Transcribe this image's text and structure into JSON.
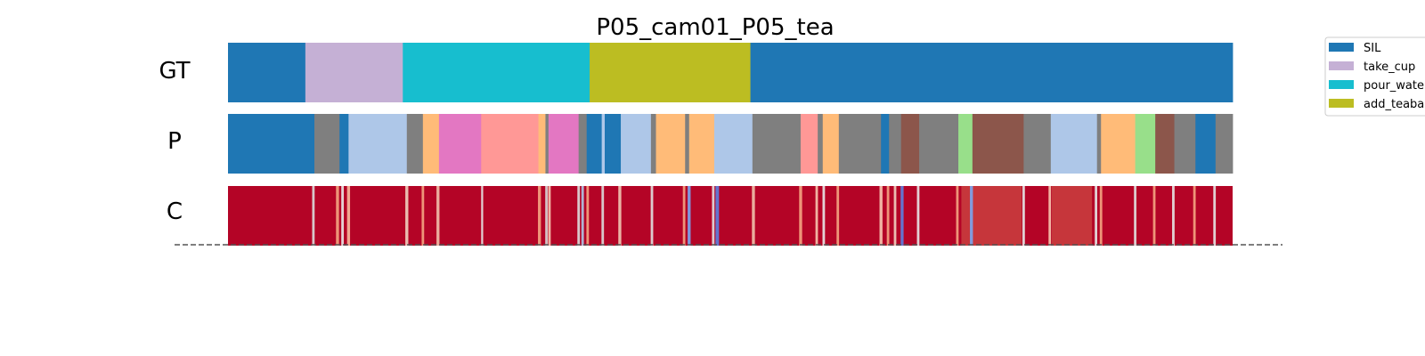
{
  "chart_data": {
    "type": "segmentation-timeline",
    "title": "P05_cam01_P05_tea",
    "x_range": [
      0,
      100
    ],
    "rows": [
      {
        "label": "GT",
        "segments": [
          {
            "start": 0.0,
            "end": 7.7,
            "color": "#1f77b4"
          },
          {
            "start": 7.7,
            "end": 17.4,
            "color": "#c5b0d5"
          },
          {
            "start": 17.4,
            "end": 36.0,
            "color": "#17becf"
          },
          {
            "start": 36.0,
            "end": 52.0,
            "color": "#bcbd22"
          },
          {
            "start": 52.0,
            "end": 100.0,
            "color": "#1f77b4"
          }
        ]
      },
      {
        "label": "P",
        "segments": [
          {
            "start": 0.0,
            "end": 8.6,
            "color": "#1f77b4"
          },
          {
            "start": 8.6,
            "end": 11.1,
            "color": "#7f7f7f"
          },
          {
            "start": 11.1,
            "end": 12.0,
            "color": "#1f77b4"
          },
          {
            "start": 12.0,
            "end": 17.8,
            "color": "#aec7e8"
          },
          {
            "start": 17.8,
            "end": 19.4,
            "color": "#7f7f7f"
          },
          {
            "start": 19.4,
            "end": 21.0,
            "color": "#ffbb78"
          },
          {
            "start": 21.0,
            "end": 25.2,
            "color": "#e377c2"
          },
          {
            "start": 25.2,
            "end": 30.9,
            "color": "#ff9896"
          },
          {
            "start": 30.9,
            "end": 31.6,
            "color": "#ffbb78"
          },
          {
            "start": 31.6,
            "end": 31.9,
            "color": "#7f7f7f"
          },
          {
            "start": 31.9,
            "end": 34.9,
            "color": "#e377c2"
          },
          {
            "start": 34.9,
            "end": 35.7,
            "color": "#7f7f7f"
          },
          {
            "start": 35.7,
            "end": 37.2,
            "color": "#1f77b4"
          },
          {
            "start": 37.2,
            "end": 37.5,
            "color": "#aec7e8"
          },
          {
            "start": 37.5,
            "end": 39.1,
            "color": "#1f77b4"
          },
          {
            "start": 39.1,
            "end": 42.1,
            "color": "#aec7e8"
          },
          {
            "start": 42.1,
            "end": 42.6,
            "color": "#7f7f7f"
          },
          {
            "start": 42.6,
            "end": 45.5,
            "color": "#ffbb78"
          },
          {
            "start": 45.5,
            "end": 45.9,
            "color": "#7f7f7f"
          },
          {
            "start": 45.9,
            "end": 48.4,
            "color": "#ffbb78"
          },
          {
            "start": 48.4,
            "end": 52.2,
            "color": "#aec7e8"
          },
          {
            "start": 52.2,
            "end": 57.0,
            "color": "#7f7f7f"
          },
          {
            "start": 57.0,
            "end": 58.7,
            "color": "#ff9896"
          },
          {
            "start": 58.7,
            "end": 59.2,
            "color": "#7f7f7f"
          },
          {
            "start": 59.2,
            "end": 60.8,
            "color": "#ffbb78"
          },
          {
            "start": 60.8,
            "end": 65.0,
            "color": "#7f7f7f"
          },
          {
            "start": 65.0,
            "end": 65.8,
            "color": "#1f77b4"
          },
          {
            "start": 65.8,
            "end": 67.0,
            "color": "#7f7f7f"
          },
          {
            "start": 67.0,
            "end": 68.8,
            "color": "#8c564b"
          },
          {
            "start": 68.8,
            "end": 72.7,
            "color": "#7f7f7f"
          },
          {
            "start": 72.7,
            "end": 74.1,
            "color": "#98df8a"
          },
          {
            "start": 74.1,
            "end": 79.2,
            "color": "#8c564b"
          },
          {
            "start": 79.2,
            "end": 81.9,
            "color": "#7f7f7f"
          },
          {
            "start": 81.9,
            "end": 86.5,
            "color": "#aec7e8"
          },
          {
            "start": 86.5,
            "end": 86.9,
            "color": "#7f7f7f"
          },
          {
            "start": 86.9,
            "end": 90.3,
            "color": "#ffbb78"
          },
          {
            "start": 90.3,
            "end": 92.3,
            "color": "#98df8a"
          },
          {
            "start": 92.3,
            "end": 94.2,
            "color": "#8c564b"
          },
          {
            "start": 94.2,
            "end": 96.3,
            "color": "#7f7f7f"
          },
          {
            "start": 96.3,
            "end": 98.3,
            "color": "#1f77b4"
          },
          {
            "start": 98.3,
            "end": 100.0,
            "color": "#7f7f7f"
          }
        ]
      },
      {
        "label": "C",
        "base_color": "#b40426",
        "stripes": [
          {
            "pos": 8.5,
            "color": "#dcdcdc",
            "width": 0.25
          },
          {
            "pos": 10.9,
            "color": "#f4a582",
            "width": 0.3
          },
          {
            "pos": 11.4,
            "color": "#e8e8e8",
            "width": 0.25
          },
          {
            "pos": 12.0,
            "color": "#f7b89c",
            "width": 0.3
          },
          {
            "pos": 17.8,
            "color": "#f0d0c0",
            "width": 0.3
          },
          {
            "pos": 19.4,
            "color": "#f4a582",
            "width": 0.25
          },
          {
            "pos": 20.9,
            "color": "#f0c0aa",
            "width": 0.3
          },
          {
            "pos": 25.3,
            "color": "#e6e6e6",
            "width": 0.2
          },
          {
            "pos": 31.0,
            "color": "#f4a582",
            "width": 0.3
          },
          {
            "pos": 31.7,
            "color": "#d6d6d6",
            "width": 0.25
          },
          {
            "pos": 32.0,
            "color": "#f7c6b0",
            "width": 0.25
          },
          {
            "pos": 34.9,
            "color": "#dddddd",
            "width": 0.25
          },
          {
            "pos": 35.3,
            "color": "#aec7e8",
            "width": 0.25
          },
          {
            "pos": 35.8,
            "color": "#f4a582",
            "width": 0.25
          },
          {
            "pos": 37.3,
            "color": "#dcdcdc",
            "width": 0.25
          },
          {
            "pos": 39.0,
            "color": "#f0c8b4",
            "width": 0.3
          },
          {
            "pos": 42.2,
            "color": "#e0e0e0",
            "width": 0.25
          },
          {
            "pos": 45.4,
            "color": "#f4a582",
            "width": 0.25
          },
          {
            "pos": 45.9,
            "color": "#7aa6f0",
            "width": 0.3
          },
          {
            "pos": 48.3,
            "color": "#e0e0e0",
            "width": 0.25
          },
          {
            "pos": 48.7,
            "color": "#5b7fe0",
            "width": 0.35
          },
          {
            "pos": 52.3,
            "color": "#f0c0aa",
            "width": 0.3
          },
          {
            "pos": 57.0,
            "color": "#f4a582",
            "width": 0.3
          },
          {
            "pos": 58.6,
            "color": "#f7c6b0",
            "width": 0.25
          },
          {
            "pos": 59.3,
            "color": "#e8e8e8",
            "width": 0.25
          },
          {
            "pos": 60.7,
            "color": "#f4a582",
            "width": 0.25
          },
          {
            "pos": 65.0,
            "color": "#f7c6b0",
            "width": 0.3
          },
          {
            "pos": 65.7,
            "color": "#f4a582",
            "width": 0.25
          },
          {
            "pos": 66.4,
            "color": "#f0d0c0",
            "width": 0.25
          },
          {
            "pos": 67.1,
            "color": "#5b7fe0",
            "width": 0.3
          },
          {
            "pos": 68.7,
            "color": "#e8e8e8",
            "width": 0.25
          },
          {
            "pos": 72.6,
            "color": "#f4a582",
            "width": 0.25
          },
          {
            "pos": 74.0,
            "color": "#7aa6f0",
            "width": 0.3
          },
          {
            "pos": 79.2,
            "color": "#e6e6e6",
            "width": 0.25
          },
          {
            "pos": 81.8,
            "color": "#f7c6b0",
            "width": 0.25
          },
          {
            "pos": 86.4,
            "color": "#e6e6e6",
            "width": 0.25
          },
          {
            "pos": 86.9,
            "color": "#f4a582",
            "width": 0.25
          },
          {
            "pos": 90.3,
            "color": "#e0e0e0",
            "width": 0.25
          },
          {
            "pos": 92.2,
            "color": "#f4a582",
            "width": 0.25
          },
          {
            "pos": 94.1,
            "color": "#e6e6e6",
            "width": 0.25
          },
          {
            "pos": 96.2,
            "color": "#f4a582",
            "width": 0.25
          },
          {
            "pos": 98.2,
            "color": "#e6e6e6",
            "width": 0.25
          }
        ],
        "light_bands": [
          {
            "start": 73.0,
            "end": 79.0,
            "color": "#d6604d"
          },
          {
            "start": 82.0,
            "end": 86.0,
            "color": "#d6604d"
          }
        ]
      }
    ],
    "legend": {
      "placement": "right",
      "entries": [
        {
          "label": "SIL",
          "color": "#1f77b4"
        },
        {
          "label": "take_cup",
          "color": "#c5b0d5"
        },
        {
          "label": "pour_water",
          "color": "#17becf"
        },
        {
          "label": "add_teabag",
          "color": "#bcbd22"
        }
      ]
    }
  }
}
